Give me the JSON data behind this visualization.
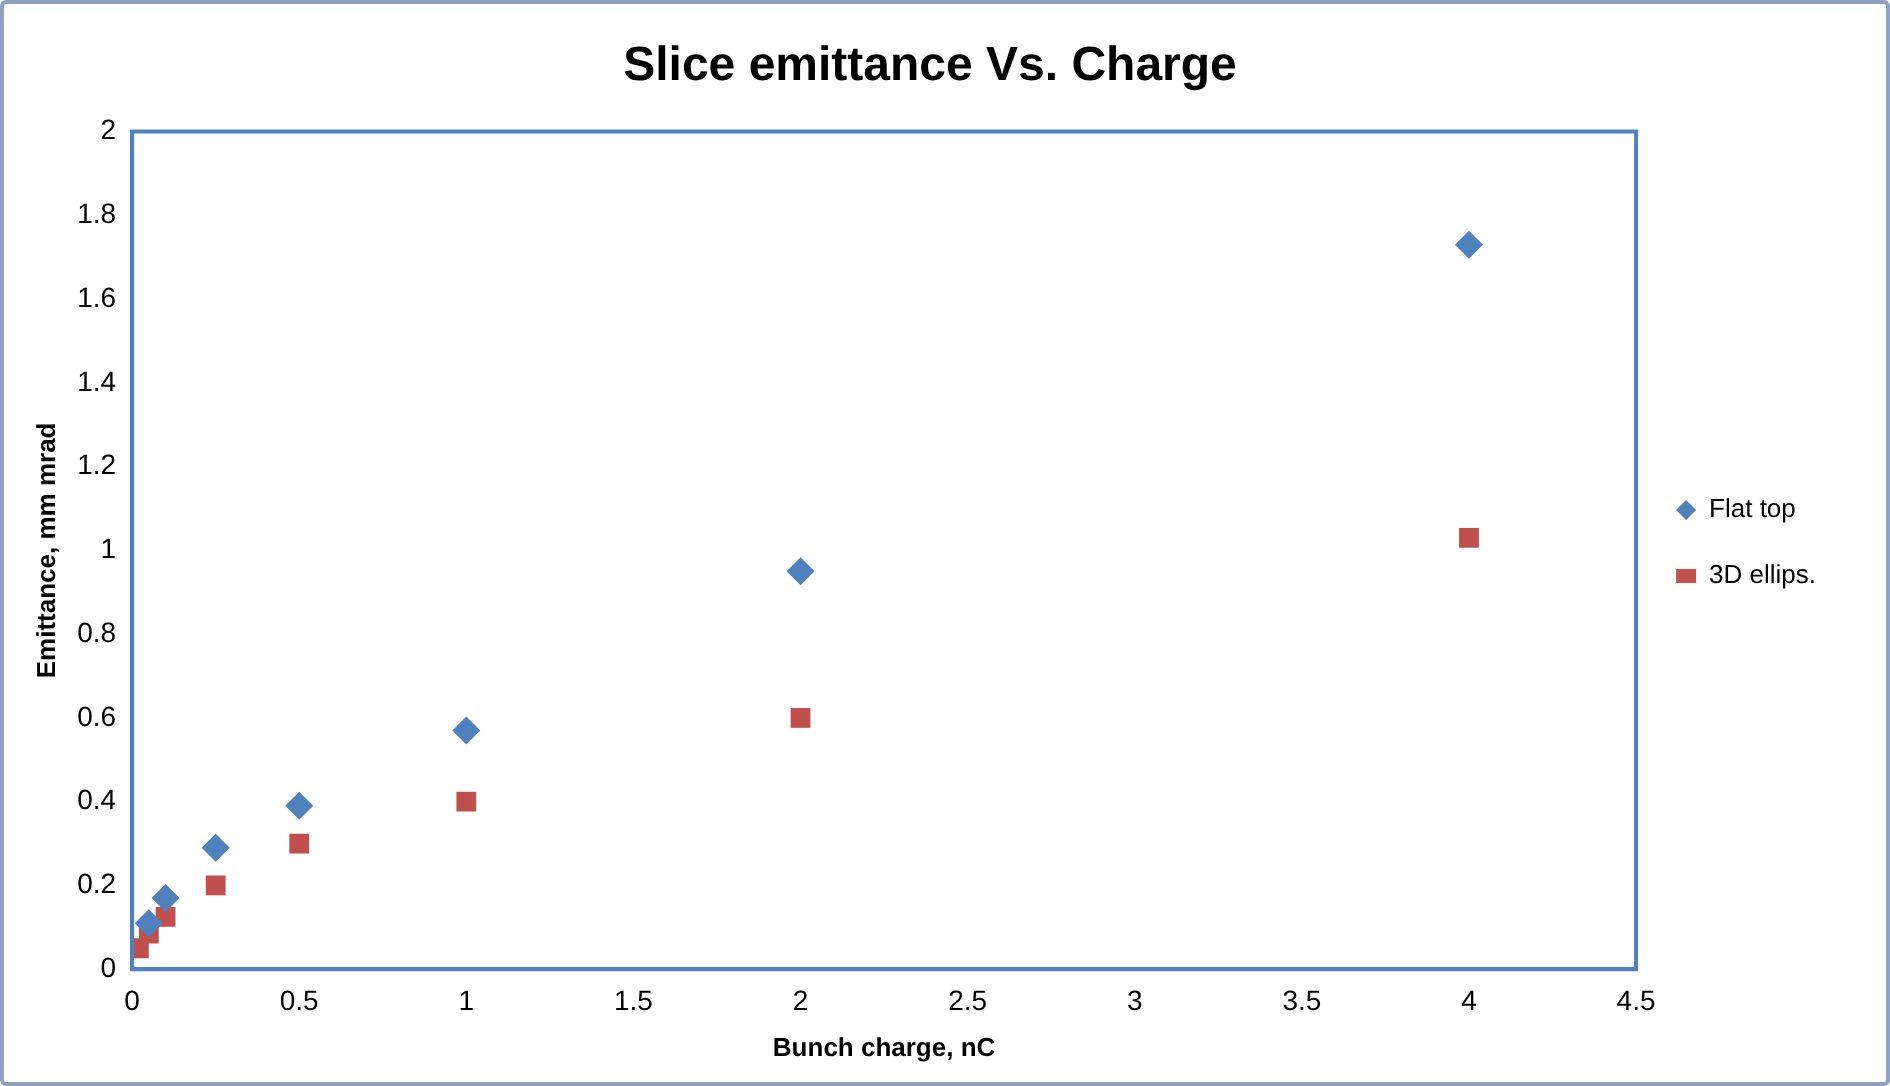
{
  "chart_data": {
    "type": "scatter",
    "title": "Slice emittance Vs. Charge",
    "xlabel": "Bunch charge, nC",
    "ylabel": "Emittance, mm mrad",
    "series": [
      {
        "name": "Flat top",
        "color": "#4f81bd",
        "marker": "diamond",
        "x": [
          0.05,
          0.1,
          0.25,
          0.5,
          1,
          2,
          4
        ],
        "values": [
          0.11,
          0.17,
          0.29,
          0.39,
          0.57,
          0.95,
          1.73
        ]
      },
      {
        "name": "3D ellips.",
        "color": "#c0504d",
        "marker": "square",
        "x": [
          0.02,
          0.05,
          0.1,
          0.25,
          0.5,
          1,
          2,
          4
        ],
        "values": [
          0.05,
          0.085,
          0.125,
          0.2,
          0.3,
          0.4,
          0.6,
          1.03
        ]
      }
    ],
    "xlim": [
      0,
      4.5
    ],
    "xticks": [
      0,
      0.5,
      1,
      1.5,
      2,
      2.5,
      3,
      3.5,
      4,
      4.5
    ],
    "ylim": [
      0,
      2
    ],
    "yticks": [
      0,
      0.2,
      0.4,
      0.6,
      0.8,
      1,
      1.2,
      1.4,
      1.6,
      1.8,
      2
    ],
    "grid": false,
    "legend": "right"
  }
}
